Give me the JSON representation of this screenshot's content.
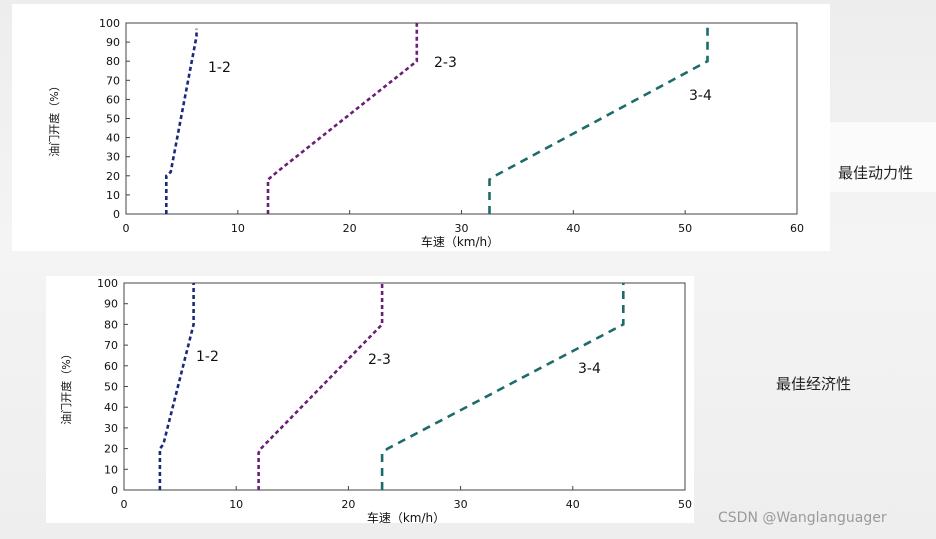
{
  "chart_data": [
    {
      "type": "line",
      "title": "",
      "xlabel": "车速（km/h）",
      "ylabel": "油门开度（%）",
      "xlim": [
        0,
        60
      ],
      "ylim": [
        0,
        100
      ],
      "xticks": [
        "0",
        "10",
        "20",
        "30",
        "40",
        "50",
        "60"
      ],
      "yticks": [
        "0",
        "10",
        "20",
        "30",
        "40",
        "50",
        "60",
        "70",
        "80",
        "90",
        "100"
      ],
      "grid": false,
      "annotation": "最佳动力性",
      "series": [
        {
          "name": "1-2",
          "color": "#1a2a7a",
          "dash": "4,3",
          "x": [
            3.6,
            3.6,
            4.0,
            6.3,
            6.3
          ],
          "y": [
            0,
            20,
            22,
            93,
            97
          ]
        },
        {
          "name": "2-3",
          "color": "#6b1f78",
          "dash": "4,3",
          "x": [
            12.7,
            12.7,
            13.5,
            26.0,
            26.0
          ],
          "y": [
            0,
            18,
            22,
            80,
            100
          ]
        },
        {
          "name": "3-4",
          "color": "#1e6b6b",
          "dash": "8,6",
          "x": [
            32.5,
            32.5,
            33.0,
            52.0,
            52.0
          ],
          "y": [
            0,
            18,
            20,
            80,
            100
          ]
        }
      ]
    },
    {
      "type": "line",
      "title": "",
      "xlabel": "车速（km/h）",
      "ylabel": "油门开度（%）",
      "xlim": [
        0,
        50
      ],
      "ylim": [
        0,
        100
      ],
      "xticks": [
        "0",
        "10",
        "20",
        "30",
        "40",
        "50"
      ],
      "yticks": [
        "0",
        "10",
        "20",
        "30",
        "40",
        "50",
        "60",
        "70",
        "80",
        "90",
        "100"
      ],
      "grid": false,
      "annotation": "最佳经济性",
      "series": [
        {
          "name": "1-2",
          "color": "#1a2a7a",
          "dash": "4,3",
          "x": [
            3.2,
            3.2,
            3.5,
            6.2,
            6.2
          ],
          "y": [
            0,
            20,
            22,
            80,
            100
          ]
        },
        {
          "name": "2-3",
          "color": "#6b1f78",
          "dash": "4,3",
          "x": [
            12.0,
            12.0,
            12.2,
            23.0,
            23.0
          ],
          "y": [
            0,
            18,
            20,
            80,
            100
          ]
        },
        {
          "name": "3-4",
          "color": "#1e6b6b",
          "dash": "8,6",
          "x": [
            23.0,
            23.0,
            23.5,
            44.5,
            44.5
          ],
          "y": [
            0,
            18,
            20,
            80,
            100
          ]
        }
      ]
    }
  ],
  "watermark": "CSDN @Wanglanguager"
}
